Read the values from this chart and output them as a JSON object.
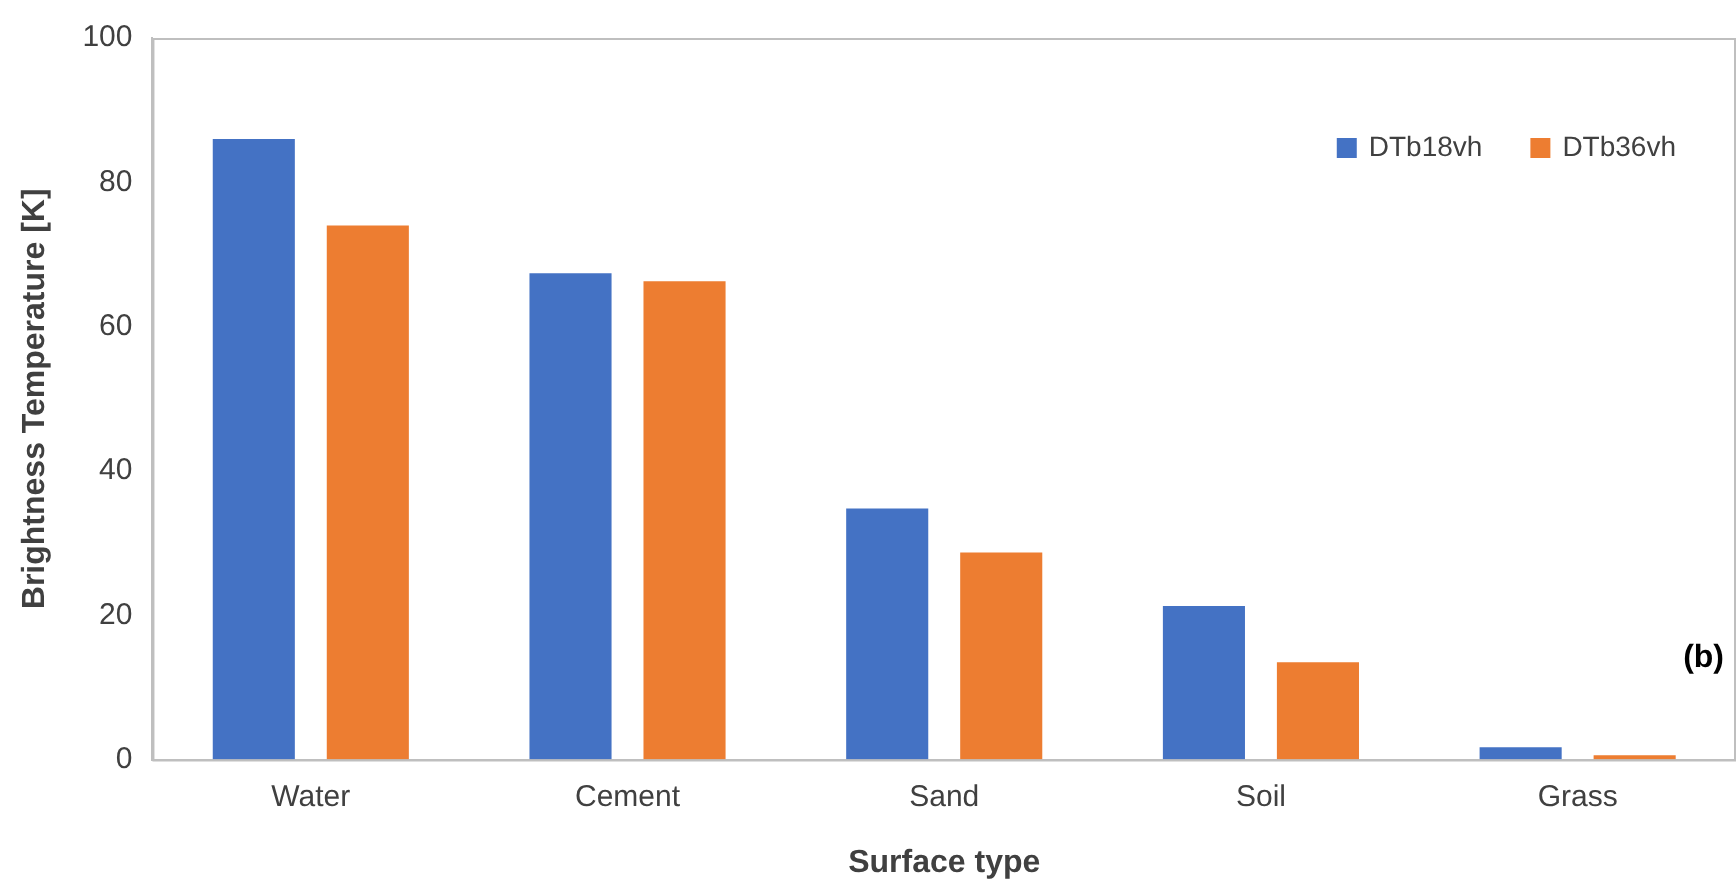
{
  "chart_data": {
    "type": "bar",
    "xlabel": "Surface type",
    "ylabel": "Brightness Temperature [K]",
    "categories": [
      "Water",
      "Cement",
      "Sand",
      "Soil",
      "Grass"
    ],
    "series": [
      {
        "name": "DTb18vh",
        "color": "#4472c4",
        "values": [
          86,
          67.4,
          34.8,
          21.3,
          1.7
        ]
      },
      {
        "name": "DTb36vh",
        "color": "#ed7d31",
        "values": [
          74,
          66.3,
          28.7,
          13.5,
          0.6
        ]
      }
    ],
    "ylim": [
      0,
      100
    ],
    "yticks": [
      0,
      20,
      40,
      60,
      80,
      100
    ],
    "grid": false,
    "legend": "top right",
    "annotations": [
      "(b)"
    ]
  }
}
